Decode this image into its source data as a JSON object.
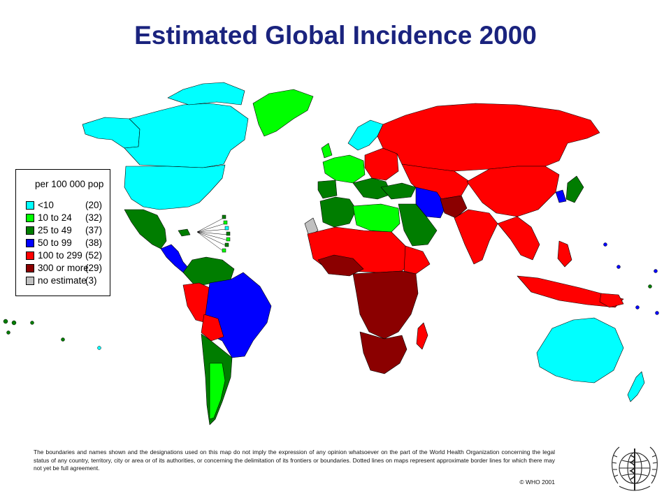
{
  "title": "Estimated Global Incidence 2000",
  "legend": {
    "title": "per 100 000 pop",
    "items": [
      {
        "label": "<10",
        "count": "(20)",
        "color": "#00ffff"
      },
      {
        "label": "10 to 24",
        "count": "(32)",
        "color": "#00ff00"
      },
      {
        "label": "25 to 49",
        "count": "(37)",
        "color": "#007d00"
      },
      {
        "label": "50 to 99",
        "count": "(38)",
        "color": "#0000ff"
      },
      {
        "label": "100 to 299",
        "count": "(52)",
        "color": "#ff0000"
      },
      {
        "label": "300 or more",
        "count": "(29)",
        "color": "#8b0000"
      },
      {
        "label": "no estimate",
        "count": "(3)",
        "color": "#c0c0c0"
      }
    ]
  },
  "disclaimer": "The boundaries and names shown and the designations used on this map do not imply the expression of any opinion whatsoever on the part of the World Health Organization concerning the legal status of any country, territory, city or area or of its authorities, or concerning the delimitation of its frontiers or boundaries. Dotted lines on maps represent approximate border lines for which there may not yet be full agreement.",
  "copyright": "© WHO 2001",
  "colors": {
    "title": "#1a237e",
    "lt10": "#00ffff",
    "r10_24": "#00ff00",
    "r25_49": "#007d00",
    "r50_99": "#0000ff",
    "r100_299": "#ff0000",
    "ge300": "#8b0000",
    "none": "#c0c0c0"
  }
}
